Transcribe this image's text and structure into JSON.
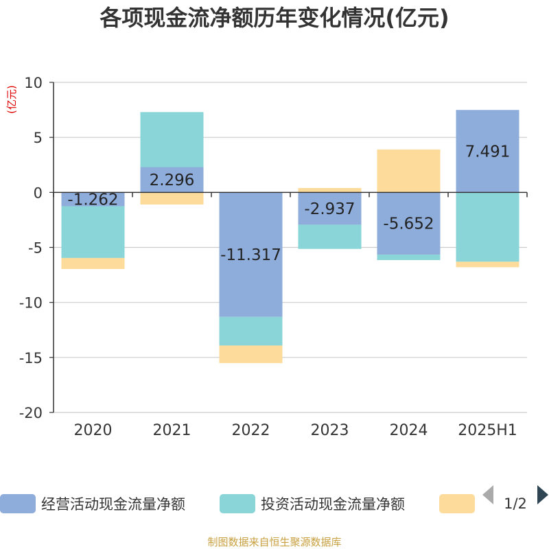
{
  "chart_data": {
    "type": "bar",
    "stacked": true,
    "title": "各项现金流净额历年变化情况(亿元)",
    "ylabel": "(亿元)",
    "xlabel": "",
    "ylim": [
      -20,
      10
    ],
    "yticks": [
      10,
      5,
      0,
      -5,
      -10,
      -15,
      -20
    ],
    "grid": true,
    "legend_position": "bottom",
    "categories": [
      "2020",
      "2021",
      "2022",
      "2023",
      "2024",
      "2025H1"
    ],
    "series": [
      {
        "name": "经营活动现金流量净额",
        "color": "#8eaddb",
        "values": [
          -1.262,
          2.296,
          -11.317,
          -2.937,
          -5.652,
          7.491
        ],
        "labels": [
          "-1.262",
          "2.296",
          "-11.317",
          "-2.937",
          "-5.652",
          "7.491"
        ]
      },
      {
        "name": "投资活动现金流量净额",
        "color": "#89d5d8",
        "values": [
          -4.7,
          5.0,
          -2.6,
          -2.2,
          -0.5,
          -6.3
        ]
      },
      {
        "name": "",
        "color": "#fddb9b",
        "values": [
          -1.0,
          -1.1,
          -1.6,
          0.4,
          3.9,
          -0.5
        ]
      }
    ]
  },
  "legend": {
    "page": "1/2"
  },
  "source": "制图数据来自恒生聚源数据库"
}
